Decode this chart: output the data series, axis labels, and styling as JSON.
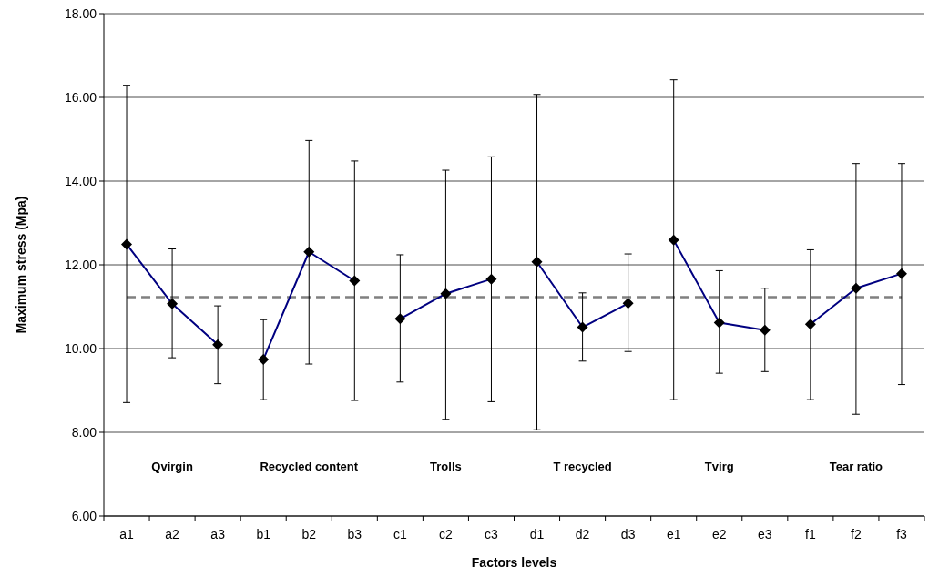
{
  "chart_data": {
    "type": "line",
    "xlabel": "Factors levels",
    "ylabel": "Maximum stress (Mpa)",
    "categories": [
      "a1",
      "a2",
      "a3",
      "b1",
      "b2",
      "b3",
      "c1",
      "c2",
      "c3",
      "d1",
      "d2",
      "d3",
      "e1",
      "e2",
      "e3",
      "f1",
      "f2",
      "f3"
    ],
    "ylim": [
      6,
      18
    ],
    "yticks": [
      {
        "value": 6,
        "label": "6.00"
      },
      {
        "value": 8,
        "label": "8.00"
      },
      {
        "value": 10,
        "label": "10.00"
      },
      {
        "value": 12,
        "label": "12.00"
      },
      {
        "value": 14,
        "label": "14.00"
      },
      {
        "value": 16,
        "label": "16.00"
      },
      {
        "value": 18,
        "label": "18.00"
      }
    ],
    "grid": "y",
    "marker": "diamond",
    "line_style": "solid",
    "series": [
      {
        "color": "#000080",
        "values": [
          12.49,
          11.07,
          10.09,
          null,
          null,
          null,
          null,
          null,
          null,
          null,
          null,
          null,
          null,
          null,
          null,
          null,
          null,
          null
        ],
        "errors": [
          [
            8.71,
            16.29
          ],
          [
            9.78,
            12.38
          ],
          [
            9.16,
            11.02
          ],
          null,
          null,
          null,
          null,
          null,
          null,
          null,
          null,
          null,
          null,
          null,
          null,
          null,
          null,
          null
        ]
      },
      {
        "color": "#000080",
        "values": [
          null,
          null,
          null,
          9.74,
          12.31,
          11.62,
          null,
          null,
          null,
          null,
          null,
          null,
          null,
          null,
          null,
          null,
          null,
          null
        ],
        "errors": [
          null,
          null,
          null,
          [
            8.78,
            10.69
          ],
          [
            9.63,
            14.97
          ],
          [
            8.76,
            14.48
          ],
          null,
          null,
          null,
          null,
          null,
          null,
          null,
          null,
          null,
          null,
          null,
          null
        ]
      },
      {
        "color": "#000080",
        "values": [
          null,
          null,
          null,
          null,
          null,
          null,
          10.71,
          11.31,
          11.66,
          null,
          null,
          null,
          null,
          null,
          null,
          null,
          null,
          null
        ],
        "errors": [
          null,
          null,
          null,
          null,
          null,
          null,
          [
            9.2,
            12.24
          ],
          [
            8.31,
            14.26
          ],
          [
            8.73,
            14.58
          ],
          null,
          null,
          null,
          null,
          null,
          null,
          null,
          null,
          null
        ]
      },
      {
        "color": "#000080",
        "values": [
          null,
          null,
          null,
          null,
          null,
          null,
          null,
          null,
          null,
          12.07,
          10.51,
          11.08,
          null,
          null,
          null,
          null,
          null,
          null
        ],
        "errors": [
          null,
          null,
          null,
          null,
          null,
          null,
          null,
          null,
          null,
          [
            8.06,
            16.07
          ],
          [
            9.7,
            11.33
          ],
          [
            9.93,
            12.26
          ],
          null,
          null,
          null,
          null,
          null,
          null
        ]
      },
      {
        "color": "#000080",
        "values": [
          null,
          null,
          null,
          null,
          null,
          null,
          null,
          null,
          null,
          null,
          null,
          null,
          12.59,
          10.62,
          10.44,
          null,
          null,
          null
        ],
        "errors": [
          null,
          null,
          null,
          null,
          null,
          null,
          null,
          null,
          null,
          null,
          null,
          null,
          [
            8.78,
            16.42
          ],
          [
            9.41,
            11.86
          ],
          [
            9.45,
            11.44
          ],
          null,
          null,
          null
        ]
      },
      {
        "color": "#000080",
        "values": [
          null,
          null,
          null,
          null,
          null,
          null,
          null,
          null,
          null,
          null,
          null,
          null,
          null,
          null,
          null,
          10.58,
          11.44,
          11.79
        ],
        "errors": [
          null,
          null,
          null,
          null,
          null,
          null,
          null,
          null,
          null,
          null,
          null,
          null,
          null,
          null,
          null,
          [
            8.78,
            12.36
          ],
          [
            8.43,
            14.42
          ],
          [
            9.14,
            14.42
          ]
        ]
      }
    ],
    "ref_lines": [
      {
        "axis": "y",
        "value": 11.23,
        "color": "#808080",
        "line_style": "dashed"
      }
    ],
    "annotations": [
      "Qvirgin",
      "Recycled content",
      "Trolls",
      "T recycled",
      "Tvirg",
      "Tear ratio"
    ]
  }
}
